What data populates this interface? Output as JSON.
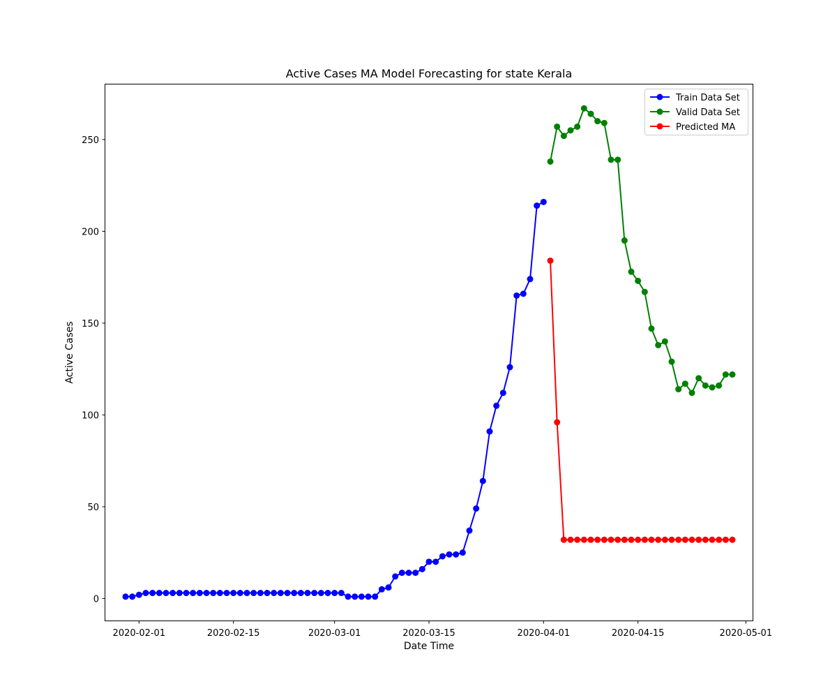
{
  "chart_data": {
    "type": "line",
    "title": "Active Cases MA Model Forecasting for state Kerala",
    "xlabel": "Date Time",
    "ylabel": "Active Cases",
    "x_axis_type": "date",
    "xlim": [
      "2020-01-27",
      "2020-05-02"
    ],
    "ylim": [
      -12,
      280
    ],
    "x_ticks": [
      "2020-02-01",
      "2020-02-15",
      "2020-03-01",
      "2020-03-15",
      "2020-04-01",
      "2020-04-15",
      "2020-05-01"
    ],
    "y_ticks": [
      0,
      50,
      100,
      150,
      200,
      250
    ],
    "grid": false,
    "legend_position": "top-right",
    "series": [
      {
        "name": "Train Data Set",
        "color": "#0000ff",
        "marker": "circle",
        "x": [
          "2020-01-30",
          "2020-01-31",
          "2020-02-01",
          "2020-02-02",
          "2020-02-03",
          "2020-02-04",
          "2020-02-05",
          "2020-02-06",
          "2020-02-07",
          "2020-02-08",
          "2020-02-09",
          "2020-02-10",
          "2020-02-11",
          "2020-02-12",
          "2020-02-13",
          "2020-02-14",
          "2020-02-15",
          "2020-02-16",
          "2020-02-17",
          "2020-02-18",
          "2020-02-19",
          "2020-02-20",
          "2020-02-21",
          "2020-02-22",
          "2020-02-23",
          "2020-02-24",
          "2020-02-25",
          "2020-02-26",
          "2020-02-27",
          "2020-02-28",
          "2020-02-29",
          "2020-03-01",
          "2020-03-02",
          "2020-03-03",
          "2020-03-04",
          "2020-03-05",
          "2020-03-06",
          "2020-03-07",
          "2020-03-08",
          "2020-03-09",
          "2020-03-10",
          "2020-03-11",
          "2020-03-12",
          "2020-03-13",
          "2020-03-14",
          "2020-03-15",
          "2020-03-16",
          "2020-03-17",
          "2020-03-18",
          "2020-03-19",
          "2020-03-20",
          "2020-03-21",
          "2020-03-22",
          "2020-03-23",
          "2020-03-24",
          "2020-03-25",
          "2020-03-26",
          "2020-03-27",
          "2020-03-28",
          "2020-03-29",
          "2020-03-30",
          "2020-03-31",
          "2020-04-01"
        ],
        "values": [
          1,
          1,
          2,
          3,
          3,
          3,
          3,
          3,
          3,
          3,
          3,
          3,
          3,
          3,
          3,
          3,
          3,
          3,
          3,
          3,
          3,
          3,
          3,
          3,
          3,
          3,
          3,
          3,
          3,
          3,
          3,
          3,
          3,
          1,
          1,
          1,
          1,
          1,
          5,
          6,
          12,
          14,
          14,
          14,
          16,
          20,
          20,
          23,
          24,
          24,
          25,
          37,
          49,
          64,
          91,
          105,
          112,
          126,
          165,
          166,
          174,
          214,
          216
        ]
      },
      {
        "name": "Valid Data Set",
        "color": "#008000",
        "marker": "circle",
        "x": [
          "2020-04-02",
          "2020-04-03",
          "2020-04-04",
          "2020-04-05",
          "2020-04-06",
          "2020-04-07",
          "2020-04-08",
          "2020-04-09",
          "2020-04-10",
          "2020-04-11",
          "2020-04-12",
          "2020-04-13",
          "2020-04-14",
          "2020-04-15",
          "2020-04-16",
          "2020-04-17",
          "2020-04-18",
          "2020-04-19",
          "2020-04-20",
          "2020-04-21",
          "2020-04-22",
          "2020-04-23",
          "2020-04-24",
          "2020-04-25",
          "2020-04-26",
          "2020-04-27",
          "2020-04-28",
          "2020-04-29"
        ],
        "values": [
          238,
          257,
          252,
          255,
          257,
          267,
          264,
          260,
          259,
          239,
          239,
          195,
          178,
          173,
          167,
          147,
          138,
          140,
          129,
          114,
          117,
          112,
          120,
          116,
          115,
          116,
          122,
          122
        ]
      },
      {
        "name": "Predicted MA",
        "color": "#ff0000",
        "marker": "circle",
        "x": [
          "2020-04-02",
          "2020-04-03",
          "2020-04-04",
          "2020-04-05",
          "2020-04-06",
          "2020-04-07",
          "2020-04-08",
          "2020-04-09",
          "2020-04-10",
          "2020-04-11",
          "2020-04-12",
          "2020-04-13",
          "2020-04-14",
          "2020-04-15",
          "2020-04-16",
          "2020-04-17",
          "2020-04-18",
          "2020-04-19",
          "2020-04-20",
          "2020-04-21",
          "2020-04-22",
          "2020-04-23",
          "2020-04-24",
          "2020-04-25",
          "2020-04-26",
          "2020-04-27",
          "2020-04-28",
          "2020-04-29"
        ],
        "values": [
          184,
          96,
          32,
          32,
          32,
          32,
          32,
          32,
          32,
          32,
          32,
          32,
          32,
          32,
          32,
          32,
          32,
          32,
          32,
          32,
          32,
          32,
          32,
          32,
          32,
          32,
          32,
          32
        ]
      }
    ]
  }
}
